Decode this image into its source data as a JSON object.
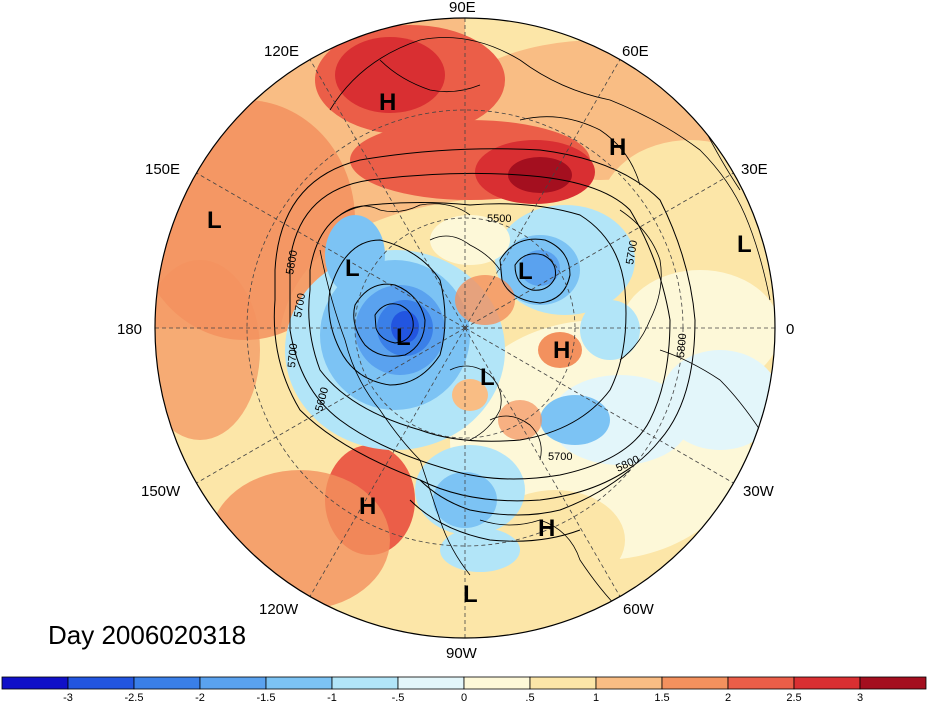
{
  "title": "Day 2006020318",
  "longitude_labels": [
    {
      "id": "90e",
      "text": "90E"
    },
    {
      "id": "60e",
      "text": "60E"
    },
    {
      "id": "30e",
      "text": "30E"
    },
    {
      "id": "0",
      "text": "0"
    },
    {
      "id": "30w",
      "text": "30W"
    },
    {
      "id": "60w",
      "text": "60W"
    },
    {
      "id": "90w",
      "text": "90W"
    },
    {
      "id": "120w",
      "text": "120W"
    },
    {
      "id": "150w",
      "text": "150W"
    },
    {
      "id": "180",
      "text": "180"
    },
    {
      "id": "150e",
      "text": "150E"
    },
    {
      "id": "120e",
      "text": "120E"
    }
  ],
  "pressure_centers": [
    {
      "type": "H",
      "label": "H"
    },
    {
      "type": "H",
      "label": "H"
    },
    {
      "type": "L",
      "label": "L"
    },
    {
      "type": "L",
      "label": "L"
    },
    {
      "type": "L",
      "label": "L"
    },
    {
      "type": "L",
      "label": "L"
    },
    {
      "type": "L",
      "label": "L"
    },
    {
      "type": "H",
      "label": "H"
    },
    {
      "type": "H",
      "label": "H"
    },
    {
      "type": "H",
      "label": "H"
    },
    {
      "type": "L",
      "label": "L"
    }
  ],
  "contour_labels": [
    "5500",
    "5700",
    "5800",
    "5700",
    "5600",
    "5700",
    "5700",
    "5800",
    "5800"
  ],
  "colorbar": {
    "colors": [
      "#1010c8",
      "#2255e0",
      "#3a7fe8",
      "#5aa2ef",
      "#7cc3f4",
      "#b2e5f8",
      "#e3f6fa",
      "#fdf8d8",
      "#fce6a8",
      "#f9bd84",
      "#f3915e",
      "#eb5e48",
      "#d92f32",
      "#a40f1f"
    ],
    "tick_labels": [
      "-3",
      "-2.5",
      "-2",
      "-1.5",
      "-1",
      "-.5",
      "0",
      ".5",
      "1",
      "1.5",
      "2",
      "2.5",
      "3"
    ]
  }
}
